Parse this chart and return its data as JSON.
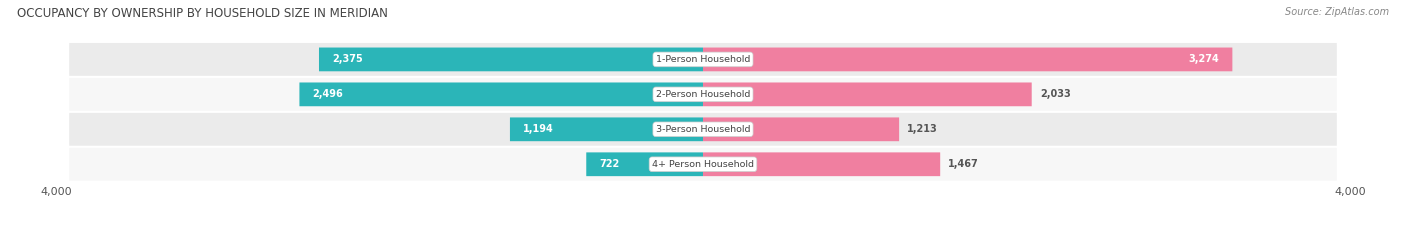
{
  "title": "OCCUPANCY BY OWNERSHIP BY HOUSEHOLD SIZE IN MERIDIAN",
  "source": "Source: ZipAtlas.com",
  "categories": [
    "1-Person Household",
    "2-Person Household",
    "3-Person Household",
    "4+ Person Household"
  ],
  "owner_values": [
    2375,
    2496,
    1194,
    722
  ],
  "renter_values": [
    3274,
    2033,
    1213,
    1467
  ],
  "x_max": 4000,
  "owner_color": "#2bb5b8",
  "renter_color": "#f07fa0",
  "row_bg_colors": [
    "#ebebeb",
    "#f7f7f7"
  ],
  "title_color": "#333333",
  "value_label_color_inside": "#ffffff",
  "value_label_color_outside": "#555555",
  "figsize": [
    14.06,
    2.33
  ],
  "dpi": 100
}
